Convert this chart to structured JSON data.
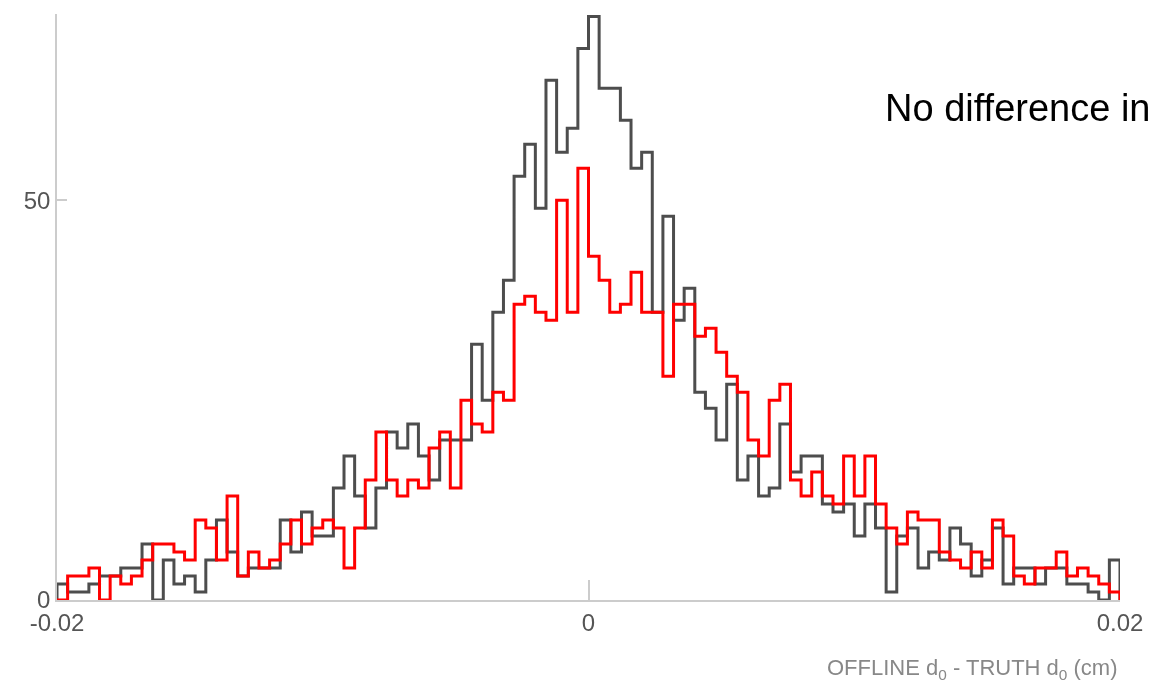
{
  "chart_data": {
    "type": "histogram",
    "xlabel": "OFFLINE d$_{0}$ - TRUTH d$_{0}$ (cm)",
    "annotations": [
      "No difference in"
    ],
    "bins": [
      -0.02,
      -0.0196,
      -0.0192,
      -0.0188,
      -0.0184,
      -0.018,
      -0.0176,
      -0.0172,
      -0.0168,
      -0.0164,
      -0.016,
      -0.0156,
      -0.0152,
      -0.0148,
      -0.0144,
      -0.014,
      -0.0136,
      -0.0132,
      -0.0128,
      -0.0124,
      -0.012,
      -0.0116,
      -0.0112,
      -0.0108,
      -0.0104,
      -0.01,
      -0.0096,
      -0.0092,
      -0.0088,
      -0.0084,
      -0.008,
      -0.0076,
      -0.0072,
      -0.0068,
      -0.0064,
      -0.006,
      -0.0056,
      -0.0052,
      -0.0048,
      -0.0044,
      -0.004,
      -0.0036,
      -0.0032,
      -0.0028,
      -0.0024,
      -0.002,
      -0.0016,
      -0.0012,
      -0.0008,
      -0.0004,
      0,
      0.0004,
      0.0008,
      0.0012,
      0.0016,
      0.002,
      0.0024,
      0.0028,
      0.0032,
      0.0036,
      0.004,
      0.0044,
      0.0048,
      0.0052,
      0.0056,
      0.006,
      0.0064,
      0.0068,
      0.0072,
      0.0076,
      0.008,
      0.0084,
      0.0088,
      0.0092,
      0.0096,
      0.01,
      0.0104,
      0.0108,
      0.0112,
      0.0116,
      0.012,
      0.0124,
      0.0128,
      0.0132,
      0.0136,
      0.014,
      0.0144,
      0.0148,
      0.0152,
      0.0156,
      0.016,
      0.0164,
      0.0168,
      0.0172,
      0.0176,
      0.018,
      0.0184,
      0.0188,
      0.0192,
      0.0196,
      0.02
    ],
    "series": [
      {
        "color": "#4d4d4d",
        "values": [
          2,
          1,
          1,
          2,
          3,
          3,
          4,
          4,
          7,
          0,
          5,
          2,
          3,
          1,
          5,
          10,
          6,
          3,
          4,
          4,
          4,
          10,
          6,
          11,
          8,
          8,
          14,
          18,
          13,
          9,
          14,
          21,
          19,
          22,
          18,
          15,
          20,
          20,
          20,
          32,
          25,
          36,
          40,
          53,
          57,
          49,
          65,
          56,
          59,
          69,
          73,
          64,
          64,
          60,
          54,
          56,
          36,
          48,
          35,
          39,
          26,
          24,
          20,
          27,
          15,
          18,
          13,
          14,
          22,
          16,
          18,
          18,
          12,
          11,
          12,
          8,
          12,
          9,
          1,
          8,
          9,
          4,
          6,
          5,
          9,
          7,
          3,
          5,
          9,
          2,
          4,
          4,
          2,
          4,
          4,
          2,
          2,
          1,
          0,
          5
        ]
      },
      {
        "color": "#ff0000",
        "values": [
          0,
          3,
          3,
          4,
          0,
          3,
          2,
          3,
          5,
          7,
          7,
          6,
          5,
          10,
          9,
          5,
          13,
          3,
          6,
          4,
          5,
          7,
          10,
          7,
          9,
          10,
          9,
          4,
          9,
          15,
          21,
          15,
          13,
          15,
          14,
          19,
          21,
          14,
          25,
          22,
          21,
          26,
          25,
          37,
          38,
          36,
          35,
          50,
          36,
          54,
          43,
          40,
          36,
          37,
          41,
          36,
          36,
          28,
          37,
          37,
          33,
          34,
          31,
          28,
          26,
          20,
          18,
          25,
          27,
          15,
          13,
          16,
          13,
          12,
          18,
          13,
          18,
          12,
          9,
          7,
          11,
          10,
          10,
          6,
          5,
          4,
          6,
          4,
          10,
          8,
          3,
          2,
          4,
          4,
          6,
          3,
          4,
          3,
          2,
          1
        ]
      }
    ],
    "xlim": [
      -0.02,
      0.02
    ],
    "xticks": [
      -0.02,
      0,
      0.02
    ],
    "ylim": [
      0,
      73.3
    ],
    "yticks": [
      0,
      50
    ]
  }
}
